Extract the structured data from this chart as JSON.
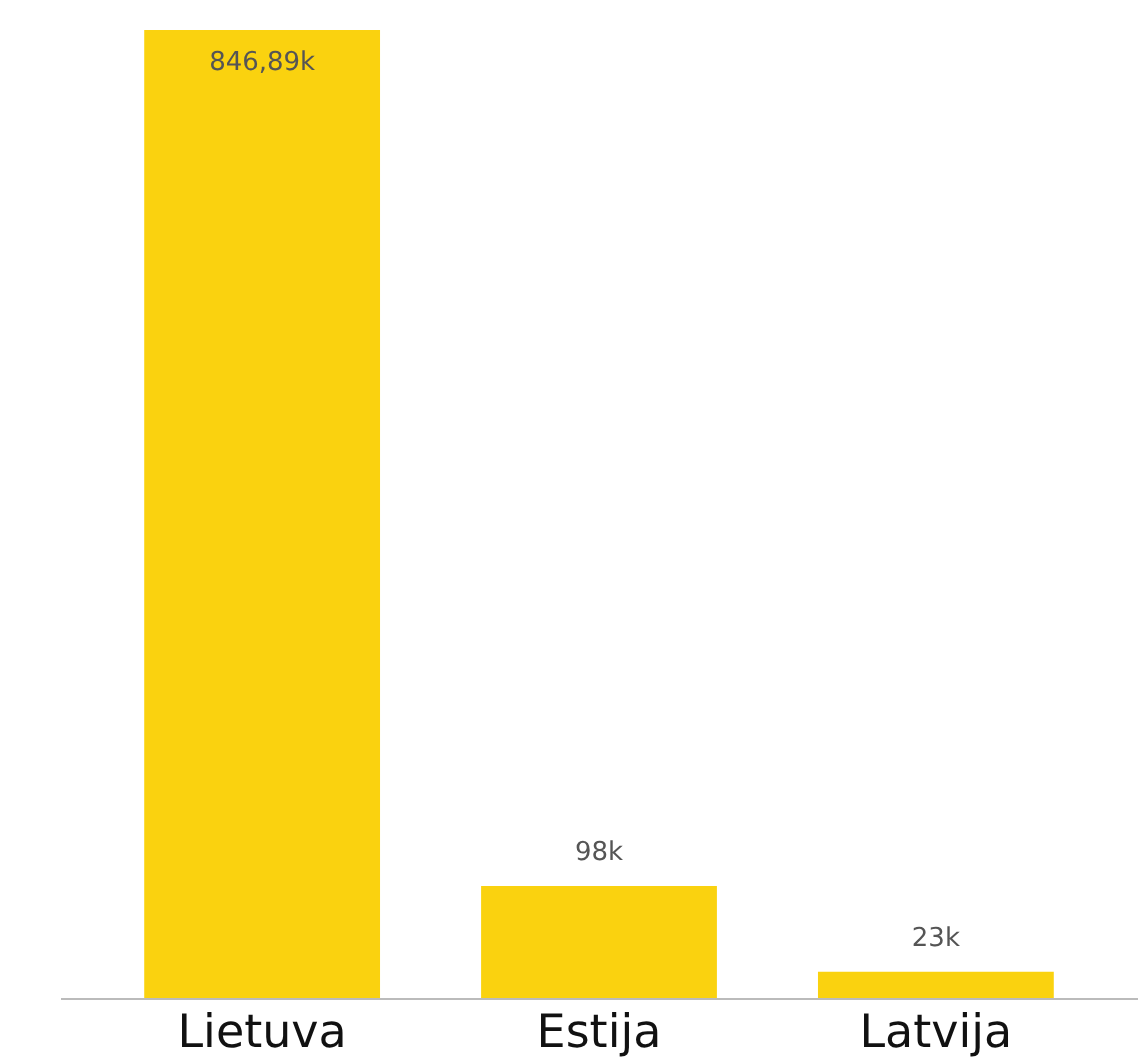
{
  "chart_data": {
    "type": "bar",
    "categories": [
      "Lietuva",
      "Estija",
      "Latvija"
    ],
    "values": [
      846890,
      98000,
      23000
    ],
    "value_labels": [
      "846,89k",
      "98k",
      "23k"
    ],
    "color": "#fad20f"
  }
}
